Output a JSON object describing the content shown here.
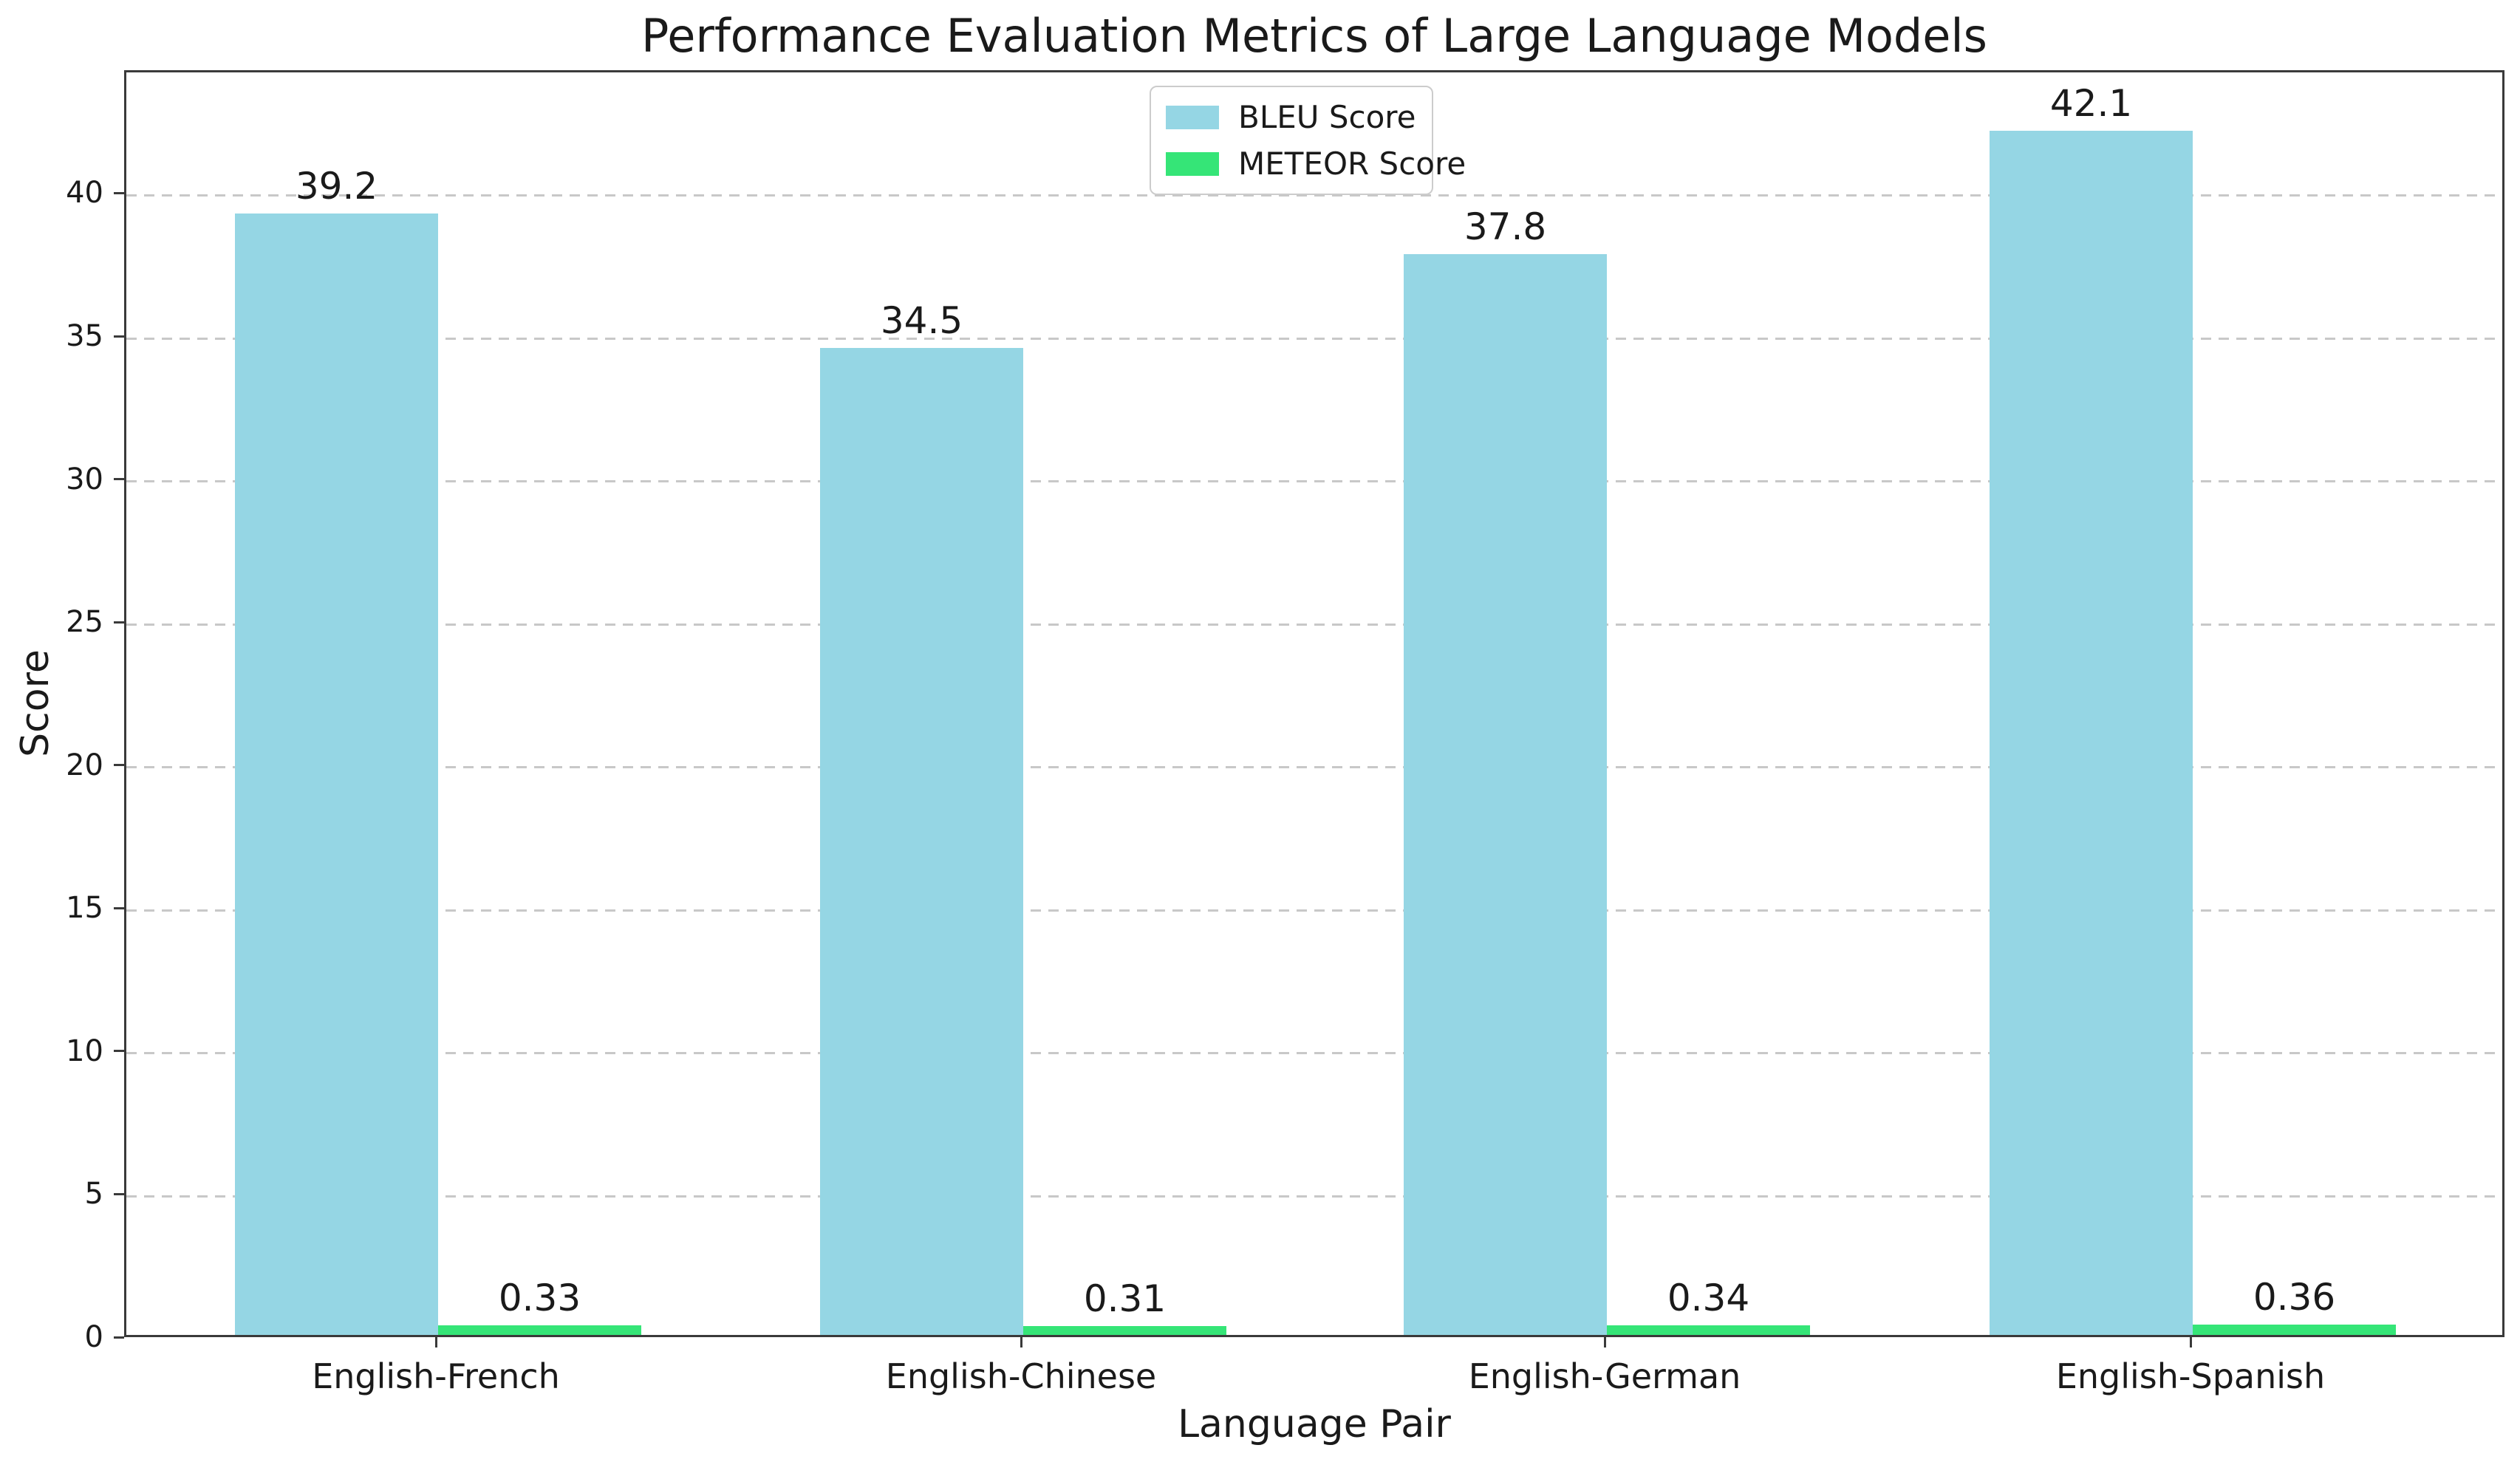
{
  "title": "Performance Evaluation Metrics of Large Language Models",
  "xlabel": "Language Pair",
  "ylabel": "Score",
  "legend": {
    "entries": [
      {
        "label": "BLEU Score",
        "color": "#95D6E4"
      },
      {
        "label": "METEOR Score",
        "color": "#35E577"
      }
    ],
    "position": "upper center"
  },
  "colors": {
    "bleu_bar": "#95D6E4",
    "meteor_bar": "#35E577",
    "grid": "#c8c8c8",
    "spine": "#3a3a3a",
    "text": "#1a1a1a",
    "background": "#ffffff"
  },
  "chart_data": {
    "type": "bar",
    "title": "Performance Evaluation Metrics of Large Language Models",
    "xlabel": "Language Pair",
    "ylabel": "Score",
    "categories": [
      "English-French",
      "English-Chinese",
      "English-German",
      "English-Spanish"
    ],
    "series": [
      {
        "name": "BLEU Score",
        "color": "#95D6E4",
        "values": [
          39.2,
          34.5,
          37.8,
          42.1
        ],
        "value_labels": [
          "39.2",
          "34.5",
          "37.8",
          "42.1"
        ]
      },
      {
        "name": "METEOR Score",
        "color": "#35E577",
        "values": [
          0.33,
          0.31,
          0.34,
          0.36
        ],
        "value_labels": [
          "0.33",
          "0.31",
          "0.34",
          "0.36"
        ]
      }
    ],
    "ylim": [
      0,
      44.3
    ],
    "yticks": [
      0,
      5,
      10,
      15,
      20,
      25,
      30,
      35,
      40
    ],
    "ytick_labels": [
      "0",
      "5",
      "10",
      "15",
      "20",
      "25",
      "30",
      "35",
      "40"
    ],
    "grid": "horizontal dashed",
    "legend_position": "upper center"
  }
}
